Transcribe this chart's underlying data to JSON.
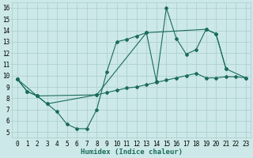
{
  "title": "",
  "xlabel": "Humidex (Indice chaleur)",
  "xlim": [
    -0.5,
    23.5
  ],
  "ylim": [
    4.5,
    16.5
  ],
  "xticks": [
    0,
    1,
    2,
    3,
    4,
    5,
    6,
    7,
    8,
    9,
    10,
    11,
    12,
    13,
    14,
    15,
    16,
    17,
    18,
    19,
    20,
    21,
    22,
    23
  ],
  "yticks": [
    5,
    6,
    7,
    8,
    9,
    10,
    11,
    12,
    13,
    14,
    15,
    16
  ],
  "bg_color": "#cce8e8",
  "line_color": "#1a6b5a",
  "grid_color": "#aacccc",
  "line1_x": [
    0,
    1,
    2,
    3,
    4,
    5,
    6,
    7,
    8,
    9,
    10,
    11,
    12,
    13,
    14,
    15,
    16,
    17,
    18,
    19,
    20,
    21
  ],
  "line1_y": [
    9.7,
    8.6,
    8.2,
    7.5,
    6.8,
    5.7,
    5.3,
    5.3,
    7.0,
    10.3,
    13.0,
    13.2,
    13.5,
    13.8,
    9.5,
    16.0,
    13.3,
    11.9,
    12.3,
    14.1,
    13.7,
    10.6
  ],
  "line2_x": [
    0,
    1,
    2,
    3,
    8,
    9,
    10,
    11,
    12,
    13,
    14,
    15,
    16,
    17,
    18,
    19,
    20,
    21,
    22,
    23
  ],
  "line2_y": [
    9.7,
    8.6,
    8.2,
    7.5,
    8.3,
    8.5,
    8.7,
    8.9,
    9.0,
    9.2,
    9.4,
    9.6,
    9.8,
    10.0,
    10.2,
    9.8,
    9.8,
    9.9,
    9.9,
    9.8
  ],
  "line3_x": [
    0,
    2,
    8,
    13,
    19,
    20,
    21,
    23
  ],
  "line3_y": [
    9.7,
    8.2,
    8.3,
    13.8,
    14.1,
    13.7,
    10.6,
    9.8
  ],
  "xlabel_color": "#1a6b5a",
  "xlabel_fontsize": 6.5,
  "tick_fontsize": 5.5
}
